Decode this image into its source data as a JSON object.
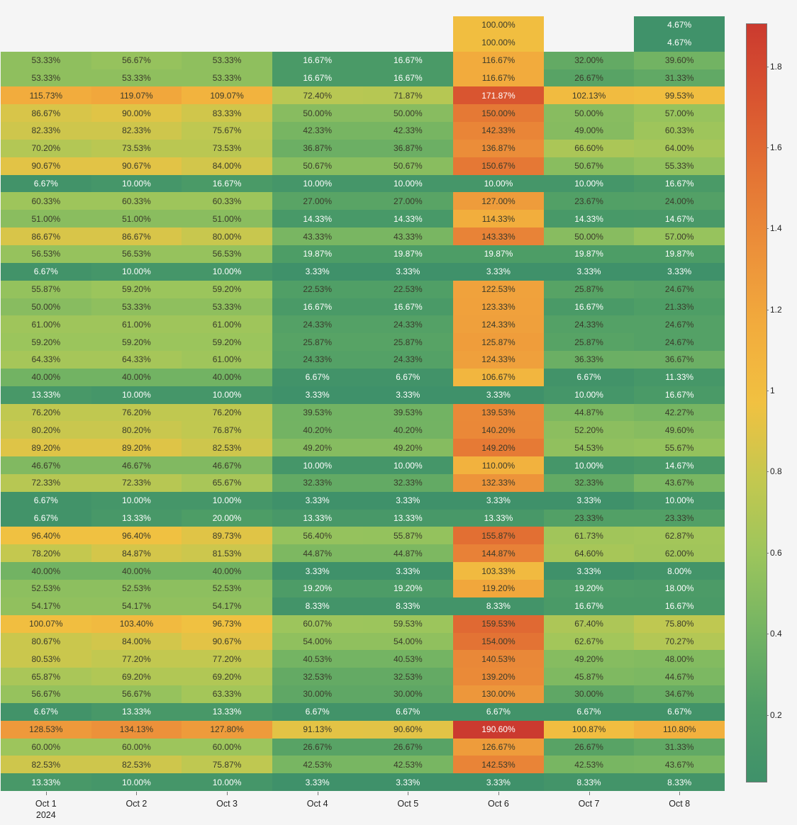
{
  "chart_data": {
    "type": "heatmap",
    "title": "",
    "xlabel": "",
    "ylabel": "",
    "x": [
      "Oct 1\n2024",
      "Oct 2",
      "Oct 3",
      "Oct 4",
      "Oct 5",
      "Oct 6",
      "Oct 7",
      "Oct 8"
    ],
    "x_labels": [
      {
        "line1": "Oct 1",
        "line2": "2024"
      },
      {
        "line1": "Oct 2",
        "line2": ""
      },
      {
        "line1": "Oct 3",
        "line2": ""
      },
      {
        "line1": "Oct 4",
        "line2": ""
      },
      {
        "line1": "Oct 5",
        "line2": ""
      },
      {
        "line1": "Oct 6",
        "line2": ""
      },
      {
        "line1": "Oct 7",
        "line2": ""
      },
      {
        "line1": "Oct 8",
        "line2": ""
      }
    ],
    "y_labels_visible": false,
    "value_format": "percent",
    "colorscale": [
      "#3f916a",
      "#9cc55c",
      "#f1c141",
      "#ec913a",
      "#cb3a2f"
    ],
    "zrange": [
      0.033,
      1.906
    ],
    "colorbar_ticks": [
      0.2,
      0.4,
      0.6,
      0.8,
      1,
      1.2,
      1.4,
      1.6,
      1.8
    ],
    "z": [
      [
        null,
        null,
        null,
        null,
        null,
        1.0,
        null,
        0.0467
      ],
      [
        null,
        null,
        null,
        null,
        null,
        1.0,
        null,
        0.0467
      ],
      [
        0.5333,
        0.5667,
        0.5333,
        0.1667,
        0.1667,
        1.1667,
        0.32,
        0.396
      ],
      [
        0.5333,
        0.5333,
        0.5333,
        0.1667,
        0.1667,
        1.1667,
        0.2667,
        0.3133
      ],
      [
        1.1573,
        1.1907,
        1.0907,
        0.724,
        0.7187,
        1.7187,
        1.0213,
        0.9953
      ],
      [
        0.8667,
        0.9,
        0.8333,
        0.5,
        0.5,
        1.5,
        0.5,
        0.57
      ],
      [
        0.8233,
        0.8233,
        0.7567,
        0.4233,
        0.4233,
        1.4233,
        0.49,
        0.6033
      ],
      [
        0.702,
        0.7353,
        0.7353,
        0.3687,
        0.3687,
        1.3687,
        0.666,
        0.64
      ],
      [
        0.9067,
        0.9067,
        0.84,
        0.5067,
        0.5067,
        1.5067,
        0.5067,
        0.5533
      ],
      [
        0.0667,
        0.1,
        0.1667,
        0.1,
        0.1,
        0.1,
        0.1,
        0.1667
      ],
      [
        0.6033,
        0.6033,
        0.6033,
        0.27,
        0.27,
        1.27,
        0.2367,
        0.24
      ],
      [
        0.51,
        0.51,
        0.51,
        0.1433,
        0.1433,
        1.1433,
        0.1433,
        0.1467
      ],
      [
        0.8667,
        0.8667,
        0.8,
        0.4333,
        0.4333,
        1.4333,
        0.5,
        0.57
      ],
      [
        0.5653,
        0.5653,
        0.5653,
        0.1987,
        0.1987,
        0.1987,
        0.1987,
        0.1987
      ],
      [
        0.0667,
        0.1,
        0.1,
        0.0333,
        0.0333,
        0.0333,
        0.0333,
        0.0333
      ],
      [
        0.5587,
        0.592,
        0.592,
        0.2253,
        0.2253,
        1.2253,
        0.2587,
        0.2467
      ],
      [
        0.5,
        0.5333,
        0.5333,
        0.1667,
        0.1667,
        1.2333,
        0.1667,
        0.2133
      ],
      [
        0.61,
        0.61,
        0.61,
        0.2433,
        0.2433,
        1.2433,
        0.2433,
        0.2467
      ],
      [
        0.592,
        0.592,
        0.592,
        0.2587,
        0.2587,
        1.2587,
        0.2587,
        0.2467
      ],
      [
        0.6433,
        0.6433,
        0.61,
        0.2433,
        0.2433,
        1.2433,
        0.3633,
        0.3667
      ],
      [
        0.4,
        0.4,
        0.4,
        0.0667,
        0.0667,
        1.0667,
        0.0667,
        0.1133
      ],
      [
        0.1333,
        0.1,
        0.1,
        0.0333,
        0.0333,
        0.0333,
        0.1,
        0.1667
      ],
      [
        0.762,
        0.762,
        0.762,
        0.3953,
        0.3953,
        1.3953,
        0.4487,
        0.4227
      ],
      [
        0.802,
        0.802,
        0.7687,
        0.402,
        0.402,
        1.402,
        0.522,
        0.496
      ],
      [
        0.892,
        0.892,
        0.8253,
        0.492,
        0.492,
        1.492,
        0.5453,
        0.5567
      ],
      [
        0.4667,
        0.4667,
        0.4667,
        0.1,
        0.1,
        1.1,
        0.1,
        0.1467
      ],
      [
        0.7233,
        0.7233,
        0.6567,
        0.3233,
        0.3233,
        1.3233,
        0.3233,
        0.4367
      ],
      [
        0.0667,
        0.1,
        0.1,
        0.0333,
        0.0333,
        0.0333,
        0.0333,
        0.1
      ],
      [
        0.0667,
        0.1333,
        0.2,
        0.1333,
        0.1333,
        0.1333,
        0.2333,
        0.2333
      ],
      [
        0.964,
        0.964,
        0.8973,
        0.564,
        0.5587,
        1.5587,
        0.6173,
        0.6287
      ],
      [
        0.782,
        0.8487,
        0.8153,
        0.4487,
        0.4487,
        1.4487,
        0.646,
        0.62
      ],
      [
        0.4,
        0.4,
        0.4,
        0.0333,
        0.0333,
        1.0333,
        0.0333,
        0.08
      ],
      [
        0.5253,
        0.5253,
        0.5253,
        0.192,
        0.192,
        1.192,
        0.192,
        0.18
      ],
      [
        0.5417,
        0.5417,
        0.5417,
        0.0833,
        0.0833,
        0.0833,
        0.1667,
        0.1667
      ],
      [
        1.0007,
        1.034,
        0.9673,
        0.6007,
        0.5953,
        1.5953,
        0.674,
        0.758
      ],
      [
        0.8067,
        0.84,
        0.9067,
        0.54,
        0.54,
        1.54,
        0.6267,
        0.7027
      ],
      [
        0.8053,
        0.772,
        0.772,
        0.4053,
        0.4053,
        1.4053,
        0.492,
        0.48
      ],
      [
        0.6587,
        0.692,
        0.692,
        0.3253,
        0.3253,
        1.392,
        0.4587,
        0.4467
      ],
      [
        0.5667,
        0.5667,
        0.6333,
        0.3,
        0.3,
        1.3,
        0.3,
        0.3467
      ],
      [
        0.0667,
        0.1333,
        0.1333,
        0.0667,
        0.0667,
        0.0667,
        0.0667,
        0.0667
      ],
      [
        1.2853,
        1.3413,
        1.278,
        0.9113,
        0.906,
        1.906,
        1.0087,
        1.108
      ],
      [
        0.6,
        0.6,
        0.6,
        0.2667,
        0.2667,
        1.2667,
        0.2667,
        0.3133
      ],
      [
        0.8253,
        0.8253,
        0.7587,
        0.4253,
        0.4253,
        1.4253,
        0.4253,
        0.4367
      ],
      [
        0.1333,
        0.1,
        0.1,
        0.0333,
        0.0333,
        0.0333,
        0.0833,
        0.0833
      ]
    ],
    "text": [
      [
        "",
        "",
        "",
        "",
        "",
        "100.00%",
        "",
        "4.67%"
      ],
      [
        "",
        "",
        "",
        "",
        "",
        "100.00%",
        "",
        "4.67%"
      ],
      [
        "53.33%",
        "56.67%",
        "53.33%",
        "16.67%",
        "16.67%",
        "116.67%",
        "32.00%",
        "39.60%"
      ],
      [
        "53.33%",
        "53.33%",
        "53.33%",
        "16.67%",
        "16.67%",
        "116.67%",
        "26.67%",
        "31.33%"
      ],
      [
        "115.73%",
        "119.07%",
        "109.07%",
        "72.40%",
        "71.87%",
        "171.87%",
        "102.13%",
        "99.53%"
      ],
      [
        "86.67%",
        "90.00%",
        "83.33%",
        "50.00%",
        "50.00%",
        "150.00%",
        "50.00%",
        "57.00%"
      ],
      [
        "82.33%",
        "82.33%",
        "75.67%",
        "42.33%",
        "42.33%",
        "142.33%",
        "49.00%",
        "60.33%"
      ],
      [
        "70.20%",
        "73.53%",
        "73.53%",
        "36.87%",
        "36.87%",
        "136.87%",
        "66.60%",
        "64.00%"
      ],
      [
        "90.67%",
        "90.67%",
        "84.00%",
        "50.67%",
        "50.67%",
        "150.67%",
        "50.67%",
        "55.33%"
      ],
      [
        "6.67%",
        "10.00%",
        "16.67%",
        "10.00%",
        "10.00%",
        "10.00%",
        "10.00%",
        "16.67%"
      ],
      [
        "60.33%",
        "60.33%",
        "60.33%",
        "27.00%",
        "27.00%",
        "127.00%",
        "23.67%",
        "24.00%"
      ],
      [
        "51.00%",
        "51.00%",
        "51.00%",
        "14.33%",
        "14.33%",
        "114.33%",
        "14.33%",
        "14.67%"
      ],
      [
        "86.67%",
        "86.67%",
        "80.00%",
        "43.33%",
        "43.33%",
        "143.33%",
        "50.00%",
        "57.00%"
      ],
      [
        "56.53%",
        "56.53%",
        "56.53%",
        "19.87%",
        "19.87%",
        "19.87%",
        "19.87%",
        "19.87%"
      ],
      [
        "6.67%",
        "10.00%",
        "10.00%",
        "3.33%",
        "3.33%",
        "3.33%",
        "3.33%",
        "3.33%"
      ],
      [
        "55.87%",
        "59.20%",
        "59.20%",
        "22.53%",
        "22.53%",
        "122.53%",
        "25.87%",
        "24.67%"
      ],
      [
        "50.00%",
        "53.33%",
        "53.33%",
        "16.67%",
        "16.67%",
        "123.33%",
        "16.67%",
        "21.33%"
      ],
      [
        "61.00%",
        "61.00%",
        "61.00%",
        "24.33%",
        "24.33%",
        "124.33%",
        "24.33%",
        "24.67%"
      ],
      [
        "59.20%",
        "59.20%",
        "59.20%",
        "25.87%",
        "25.87%",
        "125.87%",
        "25.87%",
        "24.67%"
      ],
      [
        "64.33%",
        "64.33%",
        "61.00%",
        "24.33%",
        "24.33%",
        "124.33%",
        "36.33%",
        "36.67%"
      ],
      [
        "40.00%",
        "40.00%",
        "40.00%",
        "6.67%",
        "6.67%",
        "106.67%",
        "6.67%",
        "11.33%"
      ],
      [
        "13.33%",
        "10.00%",
        "10.00%",
        "3.33%",
        "3.33%",
        "3.33%",
        "10.00%",
        "16.67%"
      ],
      [
        "76.20%",
        "76.20%",
        "76.20%",
        "39.53%",
        "39.53%",
        "139.53%",
        "44.87%",
        "42.27%"
      ],
      [
        "80.20%",
        "80.20%",
        "76.87%",
        "40.20%",
        "40.20%",
        "140.20%",
        "52.20%",
        "49.60%"
      ],
      [
        "89.20%",
        "89.20%",
        "82.53%",
        "49.20%",
        "49.20%",
        "149.20%",
        "54.53%",
        "55.67%"
      ],
      [
        "46.67%",
        "46.67%",
        "46.67%",
        "10.00%",
        "10.00%",
        "110.00%",
        "10.00%",
        "14.67%"
      ],
      [
        "72.33%",
        "72.33%",
        "65.67%",
        "32.33%",
        "32.33%",
        "132.33%",
        "32.33%",
        "43.67%"
      ],
      [
        "6.67%",
        "10.00%",
        "10.00%",
        "3.33%",
        "3.33%",
        "3.33%",
        "3.33%",
        "10.00%"
      ],
      [
        "6.67%",
        "13.33%",
        "20.00%",
        "13.33%",
        "13.33%",
        "13.33%",
        "23.33%",
        "23.33%"
      ],
      [
        "96.40%",
        "96.40%",
        "89.73%",
        "56.40%",
        "55.87%",
        "155.87%",
        "61.73%",
        "62.87%"
      ],
      [
        "78.20%",
        "84.87%",
        "81.53%",
        "44.87%",
        "44.87%",
        "144.87%",
        "64.60%",
        "62.00%"
      ],
      [
        "40.00%",
        "40.00%",
        "40.00%",
        "3.33%",
        "3.33%",
        "103.33%",
        "3.33%",
        "8.00%"
      ],
      [
        "52.53%",
        "52.53%",
        "52.53%",
        "19.20%",
        "19.20%",
        "119.20%",
        "19.20%",
        "18.00%"
      ],
      [
        "54.17%",
        "54.17%",
        "54.17%",
        "8.33%",
        "8.33%",
        "8.33%",
        "16.67%",
        "16.67%"
      ],
      [
        "100.07%",
        "103.40%",
        "96.73%",
        "60.07%",
        "59.53%",
        "159.53%",
        "67.40%",
        "75.80%"
      ],
      [
        "80.67%",
        "84.00%",
        "90.67%",
        "54.00%",
        "54.00%",
        "154.00%",
        "62.67%",
        "70.27%"
      ],
      [
        "80.53%",
        "77.20%",
        "77.20%",
        "40.53%",
        "40.53%",
        "140.53%",
        "49.20%",
        "48.00%"
      ],
      [
        "65.87%",
        "69.20%",
        "69.20%",
        "32.53%",
        "32.53%",
        "139.20%",
        "45.87%",
        "44.67%"
      ],
      [
        "56.67%",
        "56.67%",
        "63.33%",
        "30.00%",
        "30.00%",
        "130.00%",
        "30.00%",
        "34.67%"
      ],
      [
        "6.67%",
        "13.33%",
        "13.33%",
        "6.67%",
        "6.67%",
        "6.67%",
        "6.67%",
        "6.67%"
      ],
      [
        "128.53%",
        "134.13%",
        "127.80%",
        "91.13%",
        "90.60%",
        "190.60%",
        "100.87%",
        "110.80%"
      ],
      [
        "60.00%",
        "60.00%",
        "60.00%",
        "26.67%",
        "26.67%",
        "126.67%",
        "26.67%",
        "31.33%"
      ],
      [
        "82.53%",
        "82.53%",
        "75.87%",
        "42.53%",
        "42.53%",
        "142.53%",
        "42.53%",
        "43.67%"
      ],
      [
        "13.33%",
        "10.00%",
        "10.00%",
        "3.33%",
        "3.33%",
        "3.33%",
        "8.33%",
        "8.33%"
      ]
    ],
    "legend": {
      "type": "colorbar",
      "position": "right"
    },
    "grid": false
  }
}
